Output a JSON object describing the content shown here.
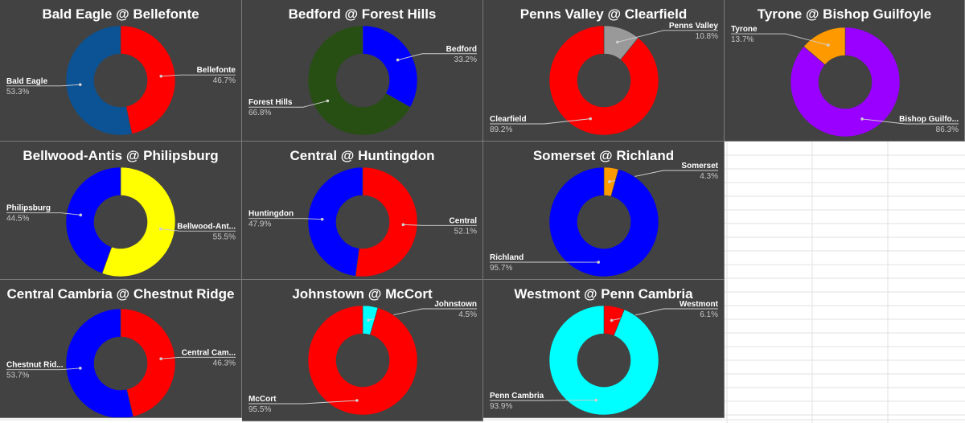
{
  "chart_data": [
    {
      "type": "pie",
      "title": "Bald Eagle @ Bellefonte",
      "slices": [
        {
          "label": "Bellefonte",
          "value": 46.7,
          "pct": "46.7%",
          "color": "#ff0000"
        },
        {
          "label": "Bald Eagle",
          "value": 53.3,
          "pct": "53.3%",
          "color": "#0b5394"
        }
      ]
    },
    {
      "type": "pie",
      "title": "Bedford @ Forest Hills",
      "slices": [
        {
          "label": "Bedford",
          "value": 33.2,
          "pct": "33.2%",
          "color": "#0000ff"
        },
        {
          "label": "Forest Hills",
          "value": 66.8,
          "pct": "66.8%",
          "color": "#274e13"
        }
      ]
    },
    {
      "type": "pie",
      "title": "Penns Valley @ Clearfield",
      "slices": [
        {
          "label": "Penns Valley",
          "value": 10.8,
          "pct": "10.8%",
          "color": "#999999"
        },
        {
          "label": "Clearfield",
          "value": 89.2,
          "pct": "89.2%",
          "color": "#ff0000"
        }
      ]
    },
    {
      "type": "pie",
      "title": "Tyrone @ Bishop Guilfoyle",
      "slices": [
        {
          "label": "Bishop Guilfo...",
          "value": 86.3,
          "pct": "86.3%",
          "color": "#9900ff"
        },
        {
          "label": "Tyrone",
          "value": 13.7,
          "pct": "13.7%",
          "color": "#ff9900"
        }
      ]
    },
    {
      "type": "pie",
      "title": "Bellwood-Antis @ Philipsburg",
      "slices": [
        {
          "label": "Bellwood-Ant...",
          "value": 55.5,
          "pct": "55.5%",
          "color": "#ffff00"
        },
        {
          "label": "Philipsburg",
          "value": 44.5,
          "pct": "44.5%",
          "color": "#0000ff"
        }
      ]
    },
    {
      "type": "pie",
      "title": "Central @ Huntingdon",
      "slices": [
        {
          "label": "Central",
          "value": 52.1,
          "pct": "52.1%",
          "color": "#ff0000"
        },
        {
          "label": "Huntingdon",
          "value": 47.9,
          "pct": "47.9%",
          "color": "#0000ff"
        }
      ]
    },
    {
      "type": "pie",
      "title": "Somerset @ Richland",
      "slices": [
        {
          "label": "Somerset",
          "value": 4.3,
          "pct": "4.3%",
          "color": "#ff9900"
        },
        {
          "label": "Richland",
          "value": 95.7,
          "pct": "95.7%",
          "color": "#0000ff"
        }
      ]
    },
    {
      "type": "pie",
      "title": "Central Cambria @ Chestnut Ridge",
      "slices": [
        {
          "label": "Central Cam...",
          "value": 46.3,
          "pct": "46.3%",
          "color": "#ff0000"
        },
        {
          "label": "Chestnut Rid...",
          "value": 53.7,
          "pct": "53.7%",
          "color": "#0000ff"
        }
      ]
    },
    {
      "type": "pie",
      "title": "Johnstown @ McCort",
      "slices": [
        {
          "label": "Johnstown",
          "value": 4.5,
          "pct": "4.5%",
          "color": "#00ffff"
        },
        {
          "label": "McCort",
          "value": 95.5,
          "pct": "95.5%",
          "color": "#ff0000"
        }
      ]
    },
    {
      "type": "pie",
      "title": "Westmont @ Penn Cambria",
      "slices": [
        {
          "label": "Westmont",
          "value": 6.1,
          "pct": "6.1%",
          "color": "#ff0000"
        },
        {
          "label": "Penn Cambria",
          "value": 93.9,
          "pct": "93.9%",
          "color": "#00ffff"
        }
      ]
    }
  ],
  "theme": {
    "panel_bg": "#424242",
    "title_color": "#ffffff",
    "leader_color": "#d0d0d0",
    "sheet_grid": "#e2e2e2"
  }
}
